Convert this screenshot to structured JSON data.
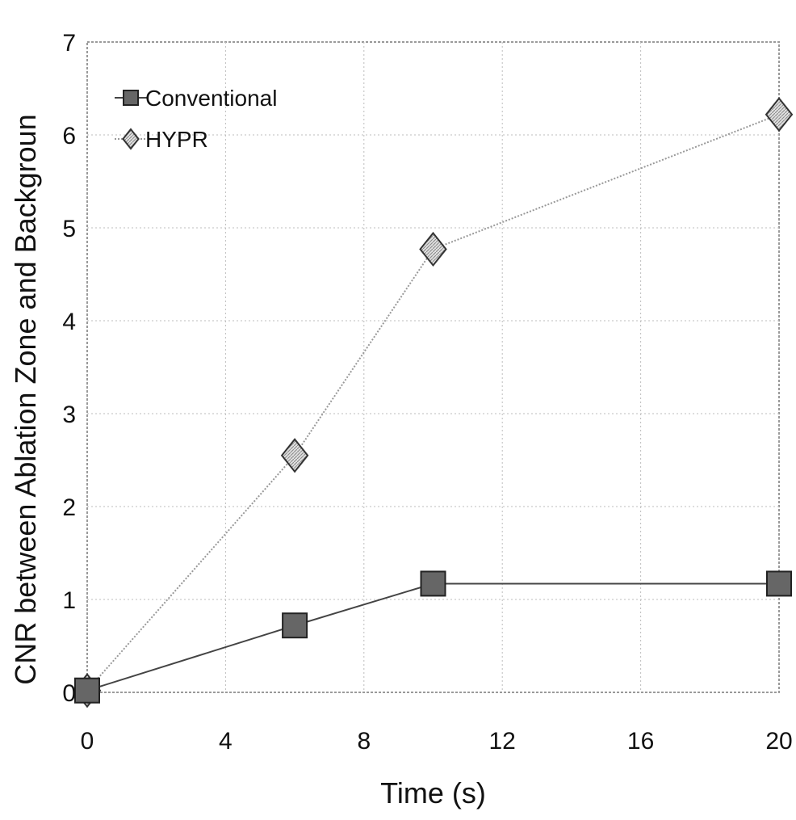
{
  "chart_data": {
    "type": "line",
    "title": "",
    "xlabel": "Time (s)",
    "ylabel": "CNR between Ablation Zone and Backgroun",
    "xlim": [
      0,
      20
    ],
    "ylim": [
      0,
      7
    ],
    "xticks": [
      0,
      4,
      8,
      12,
      16,
      20
    ],
    "yticks": [
      0,
      1,
      2,
      3,
      4,
      5,
      6,
      7
    ],
    "grid": "dotted",
    "legend_position": "top-left",
    "series": [
      {
        "name": "Conventional",
        "marker": "square",
        "color": "#555555",
        "x": [
          0,
          6,
          10,
          20
        ],
        "y": [
          0.02,
          0.72,
          1.17,
          1.17
        ]
      },
      {
        "name": "HYPR",
        "marker": "diamond",
        "color": "#bbbbbb",
        "x": [
          0,
          6,
          10,
          20
        ],
        "y": [
          0.02,
          2.55,
          4.77,
          6.22
        ]
      }
    ]
  }
}
